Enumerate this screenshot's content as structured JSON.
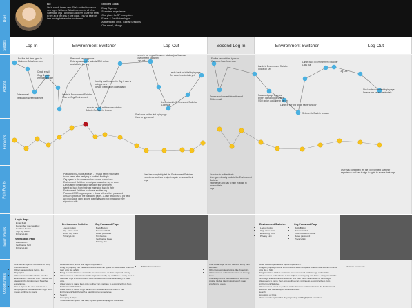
{
  "lanes": {
    "user": "User",
    "stages": "Stages",
    "actions": "Actions",
    "emotions": "Emotions",
    "pain": "Pain Points",
    "touch": "Touch Points",
    "opps": "Opportunities"
  },
  "persona": {
    "bio_label": "Bio:",
    "bio": "Lisi is a multi-tenant user. She's excited to use our new login - Welcome Salesforce.com for all of her Salesforce orgs - which will allow her to use her email to see all of her orgs in one place. This will save her time moving between her bookmarks.",
    "goals_label": "Expected Goals:",
    "goals": "-Easy Sign-up\n-Seamless experience\n-One place for SF ecosystem\n-Easier & Fast future logins\n-Authenticate once, Global Sessions\n-One email, all orgs."
  },
  "stages": [
    "Log In",
    "Environment Switcher",
    "Log Out",
    "Second Log In",
    "Environment Switcher",
    "Log Out"
  ],
  "actions": {
    "a1": "For the first time types in\nWelcome.Salesforce.com",
    "a2": "Check email",
    "a3": "Copy & paste verification code",
    "a4": "Enters email",
    "a5": "Verification screen appears",
    "a6": "Password page appears\nEnters password or selects SSO option\navailable in her org",
    "a7": "Lands in Environment Switcher\nClick on Org/ Environment",
    "a8": "Identity confirmation for Org if user is using a new\ndevice (verification code again)",
    "a9": "Lands in her org within same window\nSelects Go Back in browser",
    "a10": "Lands in her org within same window (can't access\nEnvironment Switcher)\nLogs out",
    "a11": "Lands back on initial login page\nRe: saved credentials yet",
    "a12": "Lands back in Environment Switcher\nLogs out",
    "a13": "She lands on the first login page\nHave to type email",
    "a14": "For the second time types in\nWelcome.Salesforce.com",
    "a15": "Sees saved credentials with email\nClicks email",
    "a16": "Lands in Environment Switcher\nClicks on Org",
    "a17": "Password page appears\nEnters password or selects\nSSO option available in her org",
    "a18": "Lands in her org within same window",
    "a19": "Lands back in Environment Switcher\nLogs out",
    "a20": "Selects Go Back in browser",
    "a21": "Log Out",
    "a22": "She lands on the first login page\nSelects her saved credentials"
  },
  "pain": {
    "p1": "Password/SSO page appears - This will seem redundant\nto our users after verifying in for their first login.\nOrg opens in the same window so user cannot use\nEnvironment Switcher to navigate to another org or store.\nLands at the beginning of the login flow when they\nselect go back from their org instead of back to their\nEnvironment Switcher to choose another org.\nPassword/SSO page appears - Users will see their password\nor SSO options on the password page... A user would use a pw field.\nAll SSO/social login options potentially and not know what they\nsigned up with.",
    "p2": "User has completely left the Environment Switcher\nexperience and has to sign in again to access their\norgs",
    "p3": "User has to authenticate.\nUser goes directly back to the Environment Switcher\nexperience and has to sign in again to access their\norgs.",
    "p4": "User has completely left the Environment Switcher\nexperience and has to sign in again to access their orgs."
  },
  "touch": {
    "login_page": "Login Page",
    "login_items": [
      "Email field",
      "Remember me checkbox",
      "Continue Button",
      "Sign Up button",
      "Privacy Link"
    ],
    "verif_page": "Verification Page",
    "verif_items": [
      "Back button",
      "Verification field",
      "Privacy Link"
    ],
    "env1": "Environment Switcher",
    "env1_items": [
      "Logout button",
      "Org. name card",
      "Entire Org Card",
      "Privacy Link"
    ],
    "org_pw1": "Org Password Page",
    "org_pw1_items": [
      "Back Button",
      "Password field",
      "Reset password",
      "Hint Button",
      "Verification Page",
      "Privacy link"
    ],
    "env2": "Environment Switcher",
    "env2_items": [
      "Logout button",
      "Org. name card",
      "Entire Org Card",
      "Privacy Link"
    ],
    "org_pw2": "Org Password Page",
    "org_pw2_items": [
      "Back Button",
      "Password field",
      "View password button",
      "Reset password",
      "Privacy link"
    ]
  },
  "opps": {
    "o1": [
      "Use Social login for our users to verify their identities.",
      "Other passwordless logins, like fingerprint.",
      "Allow users to authenticate into the Environment Switcher only. Then as we design in the Environment Switcher experience.",
      "Use a sign-in the user selects or a simple profile. Global Identity login won't mean anything to users."
    ],
    "o2": [
      "Better account profile and logout experience.",
      "Bring Al (Copilot) into the Environment Switcher space to allow users to act on their orgs like a hub.",
      "Bring in related articles and trails for users based on their orgs and activity.",
      "Allow users to authenticate to the highest security org and have it carry over to the other orgs in Environment Switcher and then move seamlessly to other orgs.",
      "Allow users to name their orgs so they can continue to recognize them from Environment Switcher.",
      "Allow users to select to go back in the browser and land back in the Environment Switcher with a past drag nav experience.",
      "Search",
      "Grouping of Orgs",
      "Show user the option that they signed up with/highlight it somehow"
    ],
    "o3": "Multi-tab experience",
    "o4": [
      "Use Social login for our users to verify their identities.",
      "Other passwordless logins, like fingerprint.",
      "Allow users to authenticate once at the org level.",
      "Use a sign-in the user selects or an empty profile. Global Identity login won't mean anything to users."
    ],
    "o5": [
      "Better account profile and logout experience.",
      "Bring Al (Copilot) into the Environment Switcher space to allow users to act on their orgs like a hub.",
      "Bring in related articles and trails for users based on their orgs and activity.",
      "Allow users to authenticate to the highest security org and have it carry over to the other orgs in Environment Switcher and then move seamlessly to other orgs.",
      "Allow users to name their orgs so they can continue to recognize them from Environment Switcher.",
      "Allow users to select to go back in the browser and land back in the Environment Switcher with the last open tab experience.",
      "Search",
      "Groupings of Orgs",
      "Show user the option that they signed up with/highlight it somehow"
    ],
    "o6": "Multi-tab experience"
  },
  "colors": {
    "lane": "#4aa3df",
    "dot": "#4ab0e0",
    "happy": "#f7c31c",
    "angry": "#b3121b",
    "dark_cell": "#5a5a5a"
  }
}
